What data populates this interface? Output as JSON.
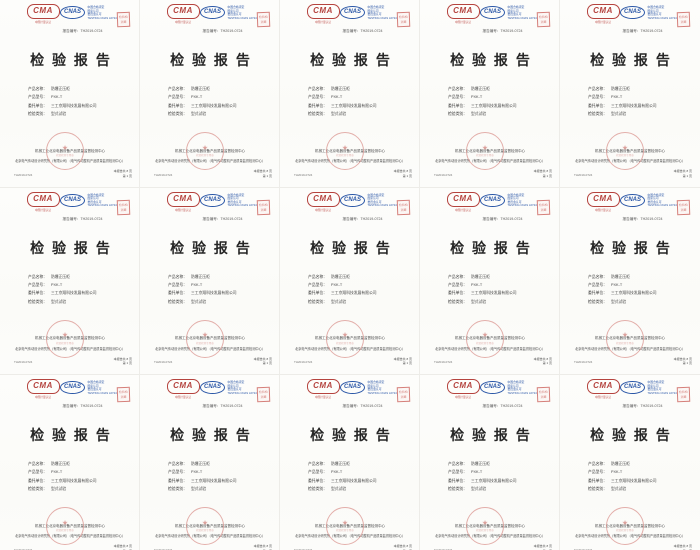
{
  "view": {
    "description": "thumbnail grid of identical scanned inspection report cover pages",
    "grid": {
      "columns": 5,
      "rows": 3,
      "page_count": 15
    }
  },
  "colors": {
    "canvas_background": "#f3f2ef",
    "paper": "#fdfdfb",
    "cma_red": "#b5433e",
    "cnas_blue": "#2b57a7",
    "seal_red": "#cf7b76",
    "title_text": "#262626"
  },
  "page": {
    "cma": {
      "text": "CMA",
      "subtext": "中国计量认证"
    },
    "cnas": {
      "text": "CNAS",
      "mark_lines": [
        "中国合格评定",
        "国家认可",
        "委员会认可",
        "TESTING CNAS L0724"
      ]
    },
    "corner_stamp": {
      "line1": "检验检",
      "line2": "测章"
    },
    "report_number": "报告编号：TH2019-0724",
    "title": "检 验 报 告",
    "fields": [
      {
        "label": "产品名称：",
        "value": "防爆正压柜"
      },
      {
        "label": "产品型号：",
        "value": "PXK-T"
      },
      {
        "label": "委托单位：",
        "value": "三工京翔科技发展有限公司"
      },
      {
        "label": "检验类别：",
        "value": "型式试验"
      }
    ],
    "footer": {
      "org_line1": "机械工业北京电器设备产品质量监督检测中心",
      "org_line2": "北京电气传动设计研究所（有限公司）（电气传动整机产品质量监督检测中心）",
      "seal_star": "★",
      "seal_text": "检验检测专用章",
      "code": "TH2019-0724",
      "pages_total": "本报告共 8 页",
      "page_number": "第 1 页"
    }
  }
}
